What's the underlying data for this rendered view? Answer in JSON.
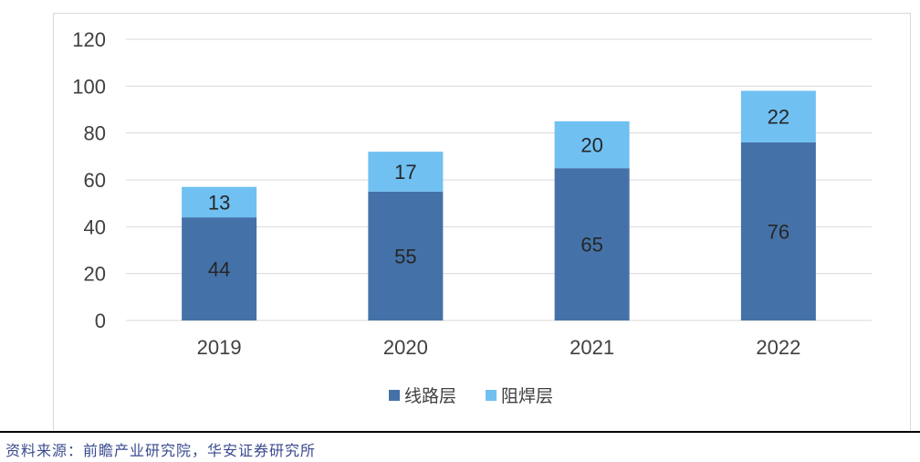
{
  "chart_data": {
    "type": "bar",
    "stacked": true,
    "categories": [
      "2019",
      "2020",
      "2021",
      "2022"
    ],
    "series": [
      {
        "name": "线路层",
        "values": [
          44,
          55,
          65,
          76
        ],
        "color": "#4472a8"
      },
      {
        "name": "阻焊层",
        "values": [
          13,
          17,
          20,
          22
        ],
        "color": "#70c0f2"
      }
    ],
    "ylim": [
      0,
      120
    ],
    "yticks": [
      "0",
      "20",
      "40",
      "60",
      "80",
      "100",
      "120"
    ],
    "grid": true,
    "legend_position": "bottom-center",
    "title": "",
    "xlabel": "",
    "ylabel": ""
  },
  "source_note": "资料来源：前瞻产业研究院，华安证券研究所",
  "colors": {
    "grid": "#d9d9d9",
    "frame": "#d9d9d9",
    "rule": "#000000",
    "source_text": "#3a4b8f"
  }
}
